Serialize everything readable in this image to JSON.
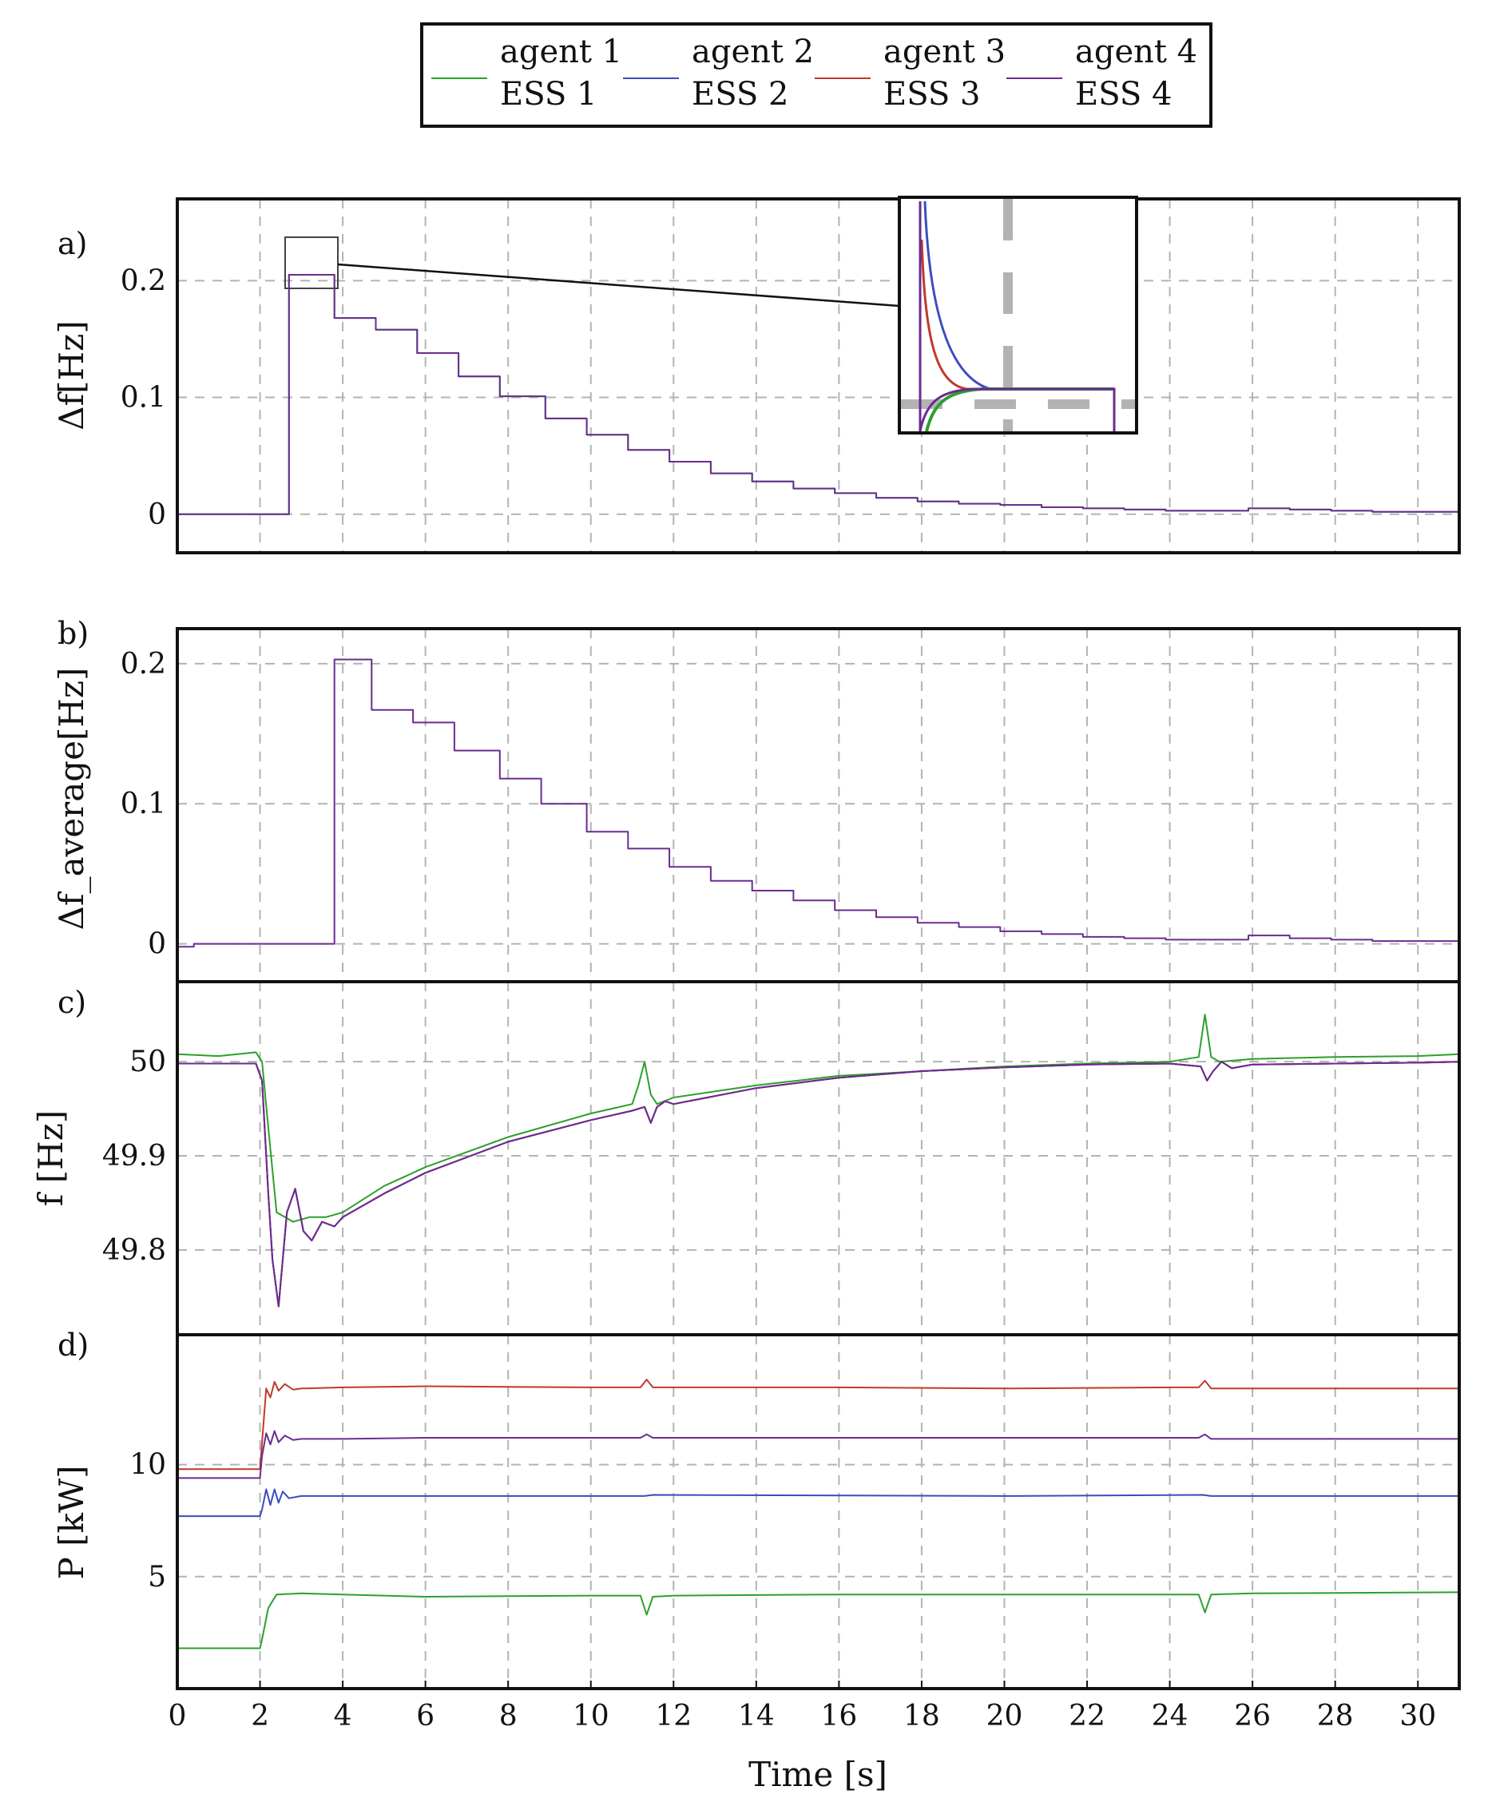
{
  "colors": {
    "agent1": "#2ca02c",
    "agent2": "#3b4cc0",
    "agent3": "#c0392b",
    "agent4": "#6a2c91",
    "ess1": "#2ca02c",
    "ess2": "#3b4cc0",
    "ess3": "#c0392b",
    "ess4": "#6a2c91",
    "grid": "#b3b3b3"
  },
  "legend": {
    "entries": [
      {
        "label": "agent 1",
        "color": "#ffffff"
      },
      {
        "label": "agent 2",
        "color": "#ffffff"
      },
      {
        "label": "agent 3",
        "color": "#ffffff"
      },
      {
        "label": "agent 4",
        "color": "#ffffff"
      },
      {
        "label": "ESS 1",
        "color": "#2ca02c"
      },
      {
        "label": "ESS 2",
        "color": "#3b4cc0"
      },
      {
        "label": "ESS 3",
        "color": "#c0392b"
      },
      {
        "label": "ESS 4",
        "color": "#6a2c91"
      }
    ]
  },
  "chart_data": [
    {
      "panel": "a)",
      "type": "line",
      "ylabel": "Δf[Hz]",
      "xlim": [
        0,
        31
      ],
      "ylim": [
        -0.033,
        0.27
      ],
      "yticks": [
        0,
        0.1,
        0.2
      ],
      "ytick_labels": [
        "0",
        "0.1",
        "0.2"
      ],
      "grid": true,
      "inset": "zoom on peak near t = 3.2 s, Δf ≈ 0.2 Hz",
      "series": [
        {
          "name": "agent 1",
          "x": [
            0,
            2.7,
            2.7,
            3.8,
            3.8,
            4.8,
            4.8,
            5.8,
            5.8,
            6.8,
            6.8,
            7.8,
            7.8,
            8.9,
            8.9,
            9.9,
            9.9,
            10.9,
            10.9,
            11.9,
            11.9,
            12.9,
            12.9,
            13.9,
            13.9,
            14.9,
            14.9,
            15.9,
            15.9,
            16.9,
            16.9,
            17.9,
            17.9,
            18.9,
            18.9,
            19.9,
            19.9,
            20.9,
            20.9,
            21.9,
            21.9,
            22.9,
            22.9,
            23.9,
            23.9,
            24.9,
            24.9,
            25.9,
            25.9,
            26.9,
            26.9,
            27.9,
            27.9,
            28.9,
            28.9,
            31
          ],
          "values": [
            0,
            0,
            0.205,
            0.205,
            0.168,
            0.168,
            0.158,
            0.158,
            0.138,
            0.138,
            0.118,
            0.118,
            0.101,
            0.101,
            0.082,
            0.082,
            0.068,
            0.068,
            0.055,
            0.055,
            0.045,
            0.045,
            0.035,
            0.035,
            0.028,
            0.028,
            0.022,
            0.022,
            0.018,
            0.018,
            0.014,
            0.014,
            0.011,
            0.011,
            0.009,
            0.009,
            0.008,
            0.008,
            0.006,
            0.006,
            0.005,
            0.005,
            0.004,
            0.004,
            0.003,
            0.003,
            0.003,
            0.003,
            0.005,
            0.005,
            0.004,
            0.004,
            0.003,
            0.003,
            0.002,
            0.002
          ]
        },
        {
          "name": "agent 4",
          "x": [
            0,
            2.7,
            2.7,
            3.8,
            3.8,
            4.8,
            4.8,
            5.8,
            5.8,
            6.8,
            6.8,
            7.8,
            7.8,
            8.9,
            8.9,
            9.9,
            9.9,
            10.9,
            10.9,
            11.9,
            11.9,
            12.9,
            12.9,
            13.9,
            13.9,
            14.9,
            14.9,
            15.9,
            15.9,
            16.9,
            16.9,
            17.9,
            17.9,
            18.9,
            18.9,
            19.9,
            19.9,
            20.9,
            20.9,
            21.9,
            21.9,
            22.9,
            22.9,
            23.9,
            23.9,
            24.9,
            24.9,
            25.9,
            25.9,
            26.9,
            26.9,
            27.9,
            27.9,
            28.9,
            28.9,
            31
          ],
          "values": [
            0,
            0,
            0.205,
            0.205,
            0.168,
            0.168,
            0.158,
            0.158,
            0.138,
            0.138,
            0.118,
            0.118,
            0.101,
            0.101,
            0.082,
            0.082,
            0.068,
            0.068,
            0.055,
            0.055,
            0.045,
            0.045,
            0.035,
            0.035,
            0.028,
            0.028,
            0.022,
            0.022,
            0.018,
            0.018,
            0.014,
            0.014,
            0.011,
            0.011,
            0.009,
            0.009,
            0.008,
            0.008,
            0.006,
            0.006,
            0.005,
            0.005,
            0.004,
            0.004,
            0.003,
            0.003,
            0.003,
            0.003,
            0.005,
            0.005,
            0.004,
            0.004,
            0.003,
            0.003,
            0.002,
            0.002
          ]
        }
      ]
    },
    {
      "panel": "b)",
      "type": "line",
      "ylabel": "Δf_average[Hz]",
      "xlim": [
        0,
        31
      ],
      "ylim": [
        -0.027,
        0.225
      ],
      "yticks": [
        0,
        0.1,
        0.2
      ],
      "ytick_labels": [
        "0",
        "0.1",
        "0.2"
      ],
      "grid": true,
      "series": [
        {
          "name": "agent 4",
          "x": [
            0,
            0.4,
            0.4,
            3.8,
            3.8,
            4.7,
            4.7,
            5.7,
            5.7,
            6.7,
            6.7,
            7.8,
            7.8,
            8.8,
            8.8,
            9.9,
            9.9,
            10.9,
            10.9,
            11.9,
            11.9,
            12.9,
            12.9,
            13.9,
            13.9,
            14.9,
            14.9,
            15.9,
            15.9,
            16.9,
            16.9,
            17.9,
            17.9,
            18.9,
            18.9,
            19.9,
            19.9,
            20.9,
            20.9,
            21.9,
            21.9,
            22.9,
            22.9,
            23.9,
            23.9,
            24.9,
            24.9,
            25.9,
            25.9,
            26.9,
            26.9,
            27.9,
            27.9,
            28.9,
            28.9,
            31
          ],
          "values": [
            -0.002,
            -0.002,
            0,
            0,
            0.203,
            0.203,
            0.167,
            0.167,
            0.158,
            0.158,
            0.138,
            0.138,
            0.118,
            0.118,
            0.1,
            0.1,
            0.08,
            0.08,
            0.068,
            0.068,
            0.055,
            0.055,
            0.045,
            0.045,
            0.038,
            0.038,
            0.031,
            0.031,
            0.024,
            0.024,
            0.019,
            0.019,
            0.015,
            0.015,
            0.012,
            0.012,
            0.009,
            0.009,
            0.007,
            0.007,
            0.005,
            0.005,
            0.004,
            0.004,
            0.003,
            0.003,
            0.003,
            0.003,
            0.006,
            0.006,
            0.004,
            0.004,
            0.003,
            0.003,
            0.002,
            0.002
          ]
        }
      ]
    },
    {
      "panel": "c)",
      "type": "line",
      "ylabel": "f [Hz]",
      "xlim": [
        0,
        31
      ],
      "ylim": [
        49.71,
        50.085
      ],
      "yticks": [
        49.8,
        49.9,
        50
      ],
      "ytick_labels": [
        "49.8",
        "49.9",
        "50"
      ],
      "grid": true,
      "series": [
        {
          "name": "ESS 1",
          "x": [
            0,
            1,
            1.9,
            2.05,
            2.2,
            2.4,
            2.8,
            3.2,
            3.6,
            4,
            5,
            6,
            8,
            10,
            11,
            11.15,
            11.3,
            11.45,
            11.6,
            12,
            14,
            16,
            18,
            20,
            22,
            24,
            24.7,
            24.85,
            25.0,
            25.2,
            26,
            28,
            30,
            31
          ],
          "values": [
            50.008,
            50.006,
            50.01,
            50.0,
            49.93,
            49.84,
            49.83,
            49.835,
            49.835,
            49.84,
            49.868,
            49.888,
            49.92,
            49.945,
            49.955,
            49.975,
            50.0,
            49.965,
            49.955,
            49.962,
            49.975,
            49.985,
            49.99,
            49.995,
            49.998,
            50.0,
            50.005,
            50.05,
            50.005,
            50.0,
            50.003,
            50.005,
            50.006,
            50.008
          ]
        },
        {
          "name": "ESS 2",
          "x": [
            0,
            1.9,
            2.05,
            2.2,
            2.3,
            2.45,
            2.65,
            2.85,
            3.05,
            3.25,
            3.5,
            3.8,
            4,
            5,
            6,
            8,
            10,
            11,
            11.3,
            11.45,
            11.6,
            11.8,
            12,
            14,
            16,
            18,
            20,
            22,
            24,
            24.75,
            24.9,
            25.05,
            25.25,
            25.5,
            26,
            28,
            30,
            31
          ],
          "values": [
            49.998,
            49.998,
            49.98,
            49.86,
            49.79,
            49.74,
            49.84,
            49.865,
            49.82,
            49.81,
            49.83,
            49.825,
            49.835,
            49.86,
            49.882,
            49.915,
            49.938,
            49.948,
            49.952,
            49.935,
            49.952,
            49.958,
            49.955,
            49.972,
            49.983,
            49.99,
            49.994,
            49.997,
            49.998,
            49.995,
            49.98,
            49.99,
            50.0,
            49.993,
            49.997,
            49.998,
            49.999,
            50.0
          ]
        },
        {
          "name": "ESS 3",
          "x": [
            0,
            1.9,
            2.05,
            2.2,
            2.3,
            2.45,
            2.65,
            2.85,
            3.05,
            3.25,
            3.5,
            3.8,
            4,
            5,
            6,
            8,
            10,
            11,
            11.3,
            11.45,
            11.6,
            11.8,
            12,
            14,
            16,
            18,
            20,
            22,
            24,
            24.75,
            24.9,
            25.05,
            25.25,
            25.5,
            26,
            28,
            30,
            31
          ],
          "values": [
            49.998,
            49.998,
            49.98,
            49.86,
            49.79,
            49.74,
            49.84,
            49.865,
            49.82,
            49.81,
            49.83,
            49.825,
            49.835,
            49.86,
            49.882,
            49.915,
            49.938,
            49.948,
            49.952,
            49.935,
            49.952,
            49.958,
            49.955,
            49.972,
            49.983,
            49.99,
            49.994,
            49.997,
            49.998,
            49.995,
            49.98,
            49.99,
            50.0,
            49.993,
            49.997,
            49.998,
            49.999,
            50.0
          ]
        },
        {
          "name": "ESS 4",
          "x": [
            0,
            1.9,
            2.05,
            2.2,
            2.3,
            2.45,
            2.65,
            2.85,
            3.05,
            3.25,
            3.5,
            3.8,
            4,
            5,
            6,
            8,
            10,
            11,
            11.3,
            11.45,
            11.6,
            11.8,
            12,
            14,
            16,
            18,
            20,
            22,
            24,
            24.75,
            24.9,
            25.05,
            25.25,
            25.5,
            26,
            28,
            30,
            31
          ],
          "values": [
            49.998,
            49.998,
            49.98,
            49.86,
            49.79,
            49.74,
            49.84,
            49.865,
            49.82,
            49.81,
            49.83,
            49.825,
            49.835,
            49.86,
            49.882,
            49.915,
            49.938,
            49.948,
            49.952,
            49.935,
            49.952,
            49.958,
            49.955,
            49.972,
            49.983,
            49.99,
            49.994,
            49.997,
            49.998,
            49.995,
            49.98,
            49.99,
            50.0,
            49.993,
            49.997,
            49.998,
            49.999,
            50.0
          ]
        }
      ]
    },
    {
      "panel": "d)",
      "type": "line",
      "ylabel": "P [kW]",
      "xlabel": "Time [s]",
      "xlim": [
        0,
        31
      ],
      "xticks": [
        0,
        2,
        4,
        6,
        8,
        10,
        12,
        14,
        16,
        18,
        20,
        22,
        24,
        26,
        28,
        30
      ],
      "xtick_labels": [
        "0",
        "2",
        "4",
        "6",
        "8",
        "10",
        "12",
        "14",
        "16",
        "18",
        "20",
        "22",
        "24",
        "26",
        "28",
        "30"
      ],
      "ylim": [
        0,
        15.8
      ],
      "yticks": [
        5,
        10
      ],
      "ytick_labels": [
        "5",
        "10"
      ],
      "grid": true,
      "series": [
        {
          "name": "ESS 1",
          "x": [
            0,
            2,
            2.05,
            2.2,
            2.4,
            3,
            4,
            6,
            10,
            11.2,
            11.35,
            11.5,
            12,
            16,
            20,
            24,
            24.7,
            24.85,
            25.0,
            26,
            31
          ],
          "values": [
            1.8,
            1.8,
            2.2,
            3.6,
            4.2,
            4.25,
            4.2,
            4.1,
            4.15,
            4.15,
            3.3,
            4.1,
            4.15,
            4.2,
            4.2,
            4.2,
            4.2,
            3.4,
            4.2,
            4.25,
            4.3
          ]
        },
        {
          "name": "ESS 2",
          "x": [
            0,
            2,
            2.05,
            2.15,
            2.25,
            2.35,
            2.45,
            2.55,
            2.7,
            3,
            4,
            10,
            11.3,
            11.5,
            20,
            24.8,
            25,
            31
          ],
          "values": [
            7.7,
            7.7,
            8.0,
            8.9,
            8.2,
            8.9,
            8.3,
            8.8,
            8.5,
            8.6,
            8.6,
            8.6,
            8.6,
            8.65,
            8.6,
            8.65,
            8.6,
            8.6
          ]
        },
        {
          "name": "ESS 3",
          "x": [
            0,
            2,
            2.05,
            2.15,
            2.25,
            2.35,
            2.45,
            2.6,
            2.8,
            3,
            4,
            6,
            10,
            11.2,
            11.35,
            11.5,
            12,
            16,
            20,
            24,
            24.7,
            24.85,
            25.0,
            26,
            31
          ],
          "values": [
            9.8,
            9.8,
            11.0,
            13.4,
            13.0,
            13.7,
            13.3,
            13.6,
            13.35,
            13.4,
            13.45,
            13.5,
            13.45,
            13.45,
            13.8,
            13.45,
            13.45,
            13.45,
            13.4,
            13.45,
            13.45,
            13.75,
            13.4,
            13.4,
            13.4
          ]
        },
        {
          "name": "ESS 4",
          "x": [
            0,
            2,
            2.05,
            2.15,
            2.25,
            2.35,
            2.45,
            2.6,
            2.8,
            3,
            4,
            6,
            10,
            11.2,
            11.35,
            11.5,
            12,
            16,
            20,
            24,
            24.7,
            24.85,
            25.0,
            26,
            31
          ],
          "values": [
            9.4,
            9.4,
            10.4,
            11.4,
            10.9,
            11.5,
            11.0,
            11.3,
            11.1,
            11.15,
            11.15,
            11.2,
            11.2,
            11.2,
            11.35,
            11.2,
            11.2,
            11.2,
            11.2,
            11.2,
            11.2,
            11.35,
            11.15,
            11.15,
            11.15
          ]
        }
      ]
    }
  ]
}
